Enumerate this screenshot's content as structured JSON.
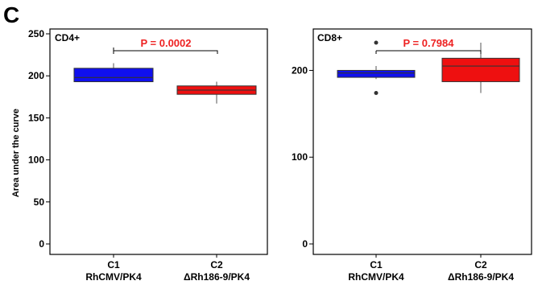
{
  "figure": {
    "panel_letter": "C"
  },
  "colors": {
    "c1": "#1010ee",
    "c2": "#ee1010",
    "p_value": "#ee2222",
    "axis": "#000000"
  },
  "chart_data": [
    {
      "type": "box",
      "panel_label": "CD4+",
      "ylabel": "Area under the curve",
      "ylim": [
        0,
        250
      ],
      "yticks": [
        0,
        50,
        100,
        150,
        200,
        250
      ],
      "y_tick_labels": [
        "0",
        "50",
        "100",
        "150",
        "200",
        "250"
      ],
      "categories": [
        {
          "line1": "C1",
          "line2": "RhCMV/PK4"
        },
        {
          "line1": "C2",
          "line2": "ΔRh186-9/PK4"
        }
      ],
      "boxes": [
        {
          "name": "C1",
          "whisker_low": 193,
          "q1": 193,
          "median": 198,
          "q3": 209,
          "whisker_high": 215,
          "outliers": [],
          "color": "#1010ee"
        },
        {
          "name": "C2",
          "whisker_low": 167,
          "q1": 178,
          "median": 183,
          "q3": 188,
          "whisker_high": 193,
          "outliers": [],
          "color": "#ee1010"
        }
      ],
      "p_value": "P = 0.0002"
    },
    {
      "type": "box",
      "panel_label": "CD8+",
      "ylabel": "",
      "ylim": [
        0,
        270
      ],
      "yticks": [
        0,
        100,
        200
      ],
      "y_tick_labels": [
        "0",
        "100",
        "200"
      ],
      "categories": [
        {
          "line1": "C1",
          "line2": "RhCMV/PK4"
        },
        {
          "line1": "C2",
          "line2": "ΔRh186-9/PK4"
        }
      ],
      "boxes": [
        {
          "name": "C1",
          "whisker_low": 190,
          "q1": 192,
          "median": 197,
          "q3": 200,
          "whisker_high": 205,
          "outliers": [
            174,
            232
          ],
          "color": "#1010ee"
        },
        {
          "name": "C2",
          "whisker_low": 174,
          "q1": 187,
          "median": 205,
          "q3": 214,
          "whisker_high": 232,
          "outliers": [],
          "color": "#ee1010"
        }
      ],
      "p_value": "P = 0.7984"
    }
  ]
}
